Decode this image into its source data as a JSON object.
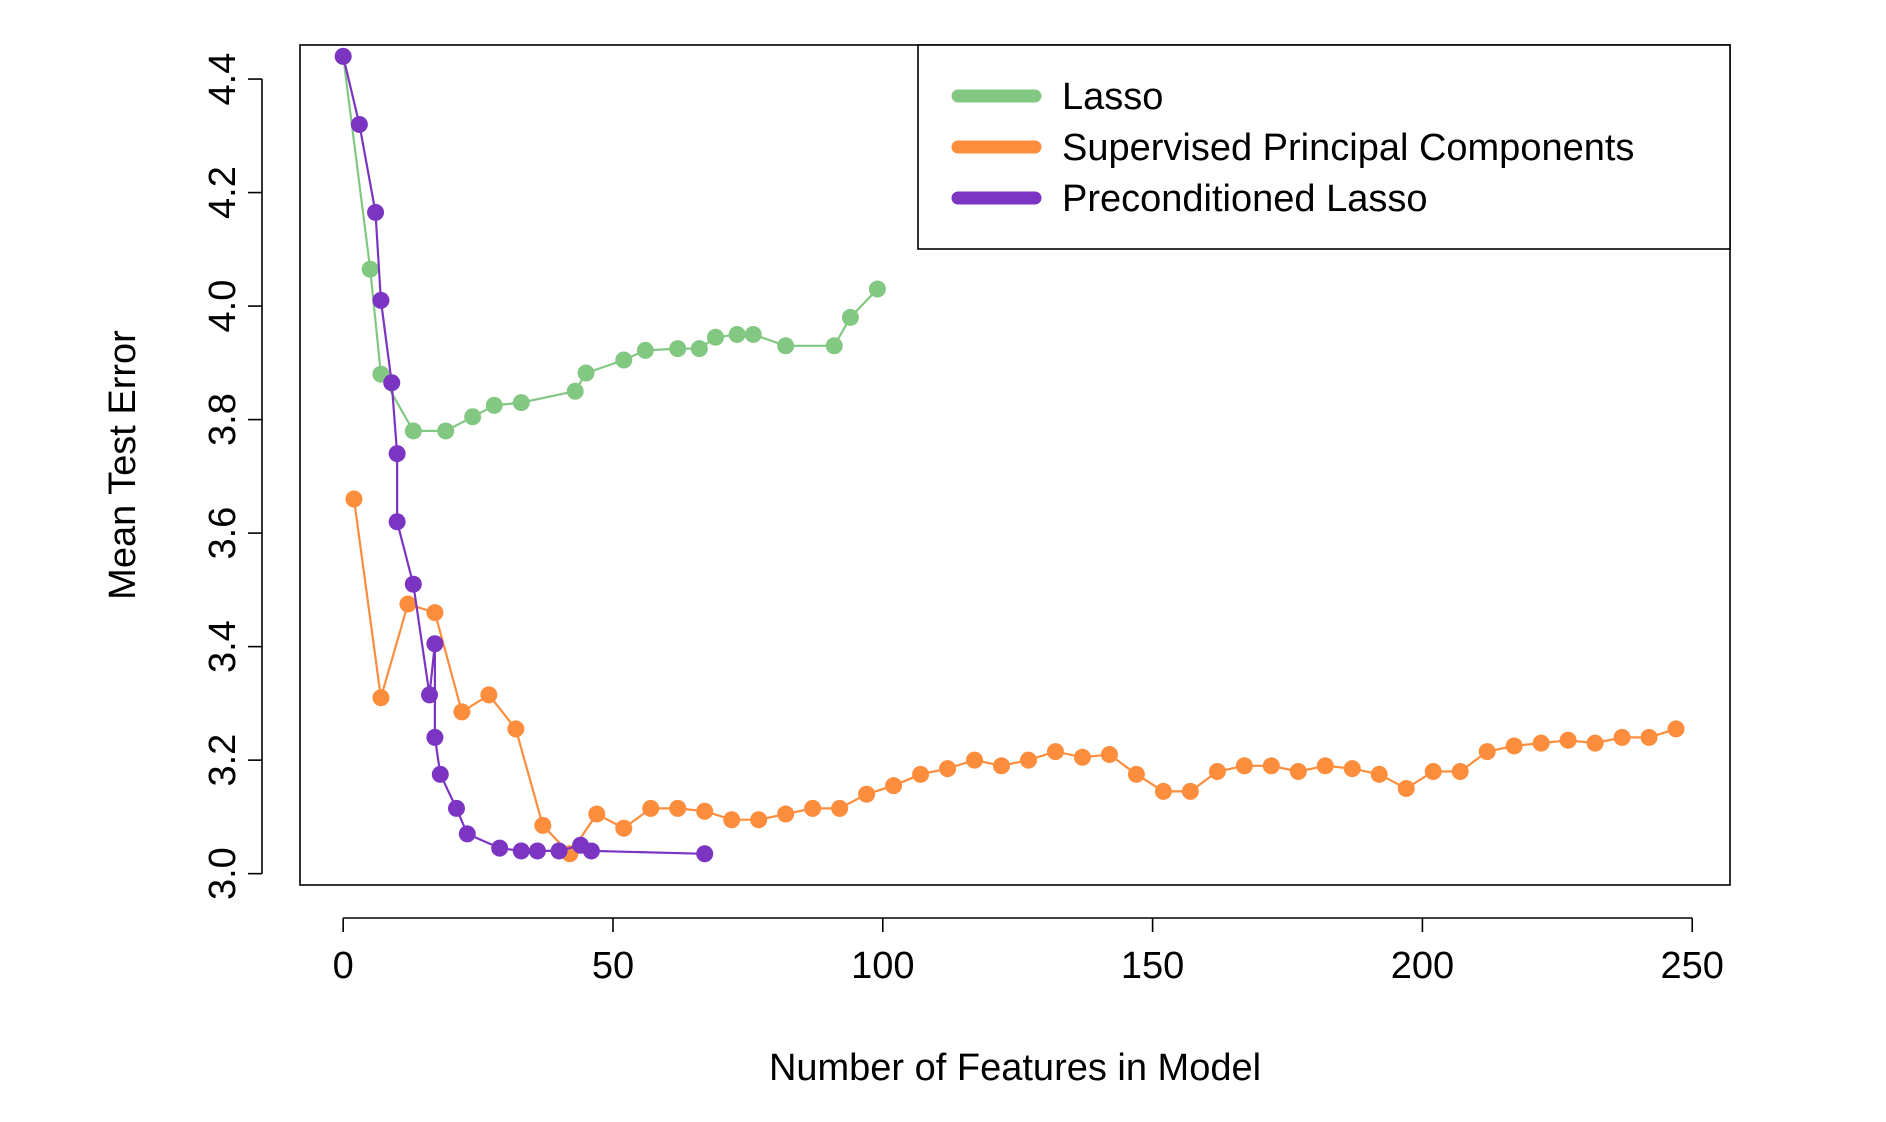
{
  "chart_data": {
    "type": "line",
    "title": "",
    "xlabel": "Number of Features in Model",
    "ylabel": "Mean Test Error",
    "xlim": [
      -8,
      257
    ],
    "ylim": [
      2.98,
      4.46
    ],
    "xticks": [
      0,
      50,
      100,
      150,
      200,
      250
    ],
    "yticks": [
      3.0,
      3.2,
      3.4,
      3.6,
      3.8,
      4.0,
      4.2,
      4.4
    ],
    "xtick_labels": [
      "0",
      "50",
      "100",
      "150",
      "200",
      "250"
    ],
    "ytick_labels": [
      "3.0",
      "3.2",
      "3.4",
      "3.6",
      "3.8",
      "4.0",
      "4.2",
      "4.4"
    ],
    "grid": false,
    "legend": {
      "position": "top-right",
      "entries": [
        "Lasso",
        "Supervised Principal Components",
        "Preconditioned Lasso"
      ]
    },
    "series": [
      {
        "name": "Lasso",
        "color": "#82c882",
        "x": [
          0,
          5,
          7,
          13,
          19,
          24,
          28,
          33,
          43,
          45,
          52,
          56,
          62,
          66,
          69,
          73,
          76,
          82,
          91,
          94,
          99
        ],
        "y": [
          4.44,
          4.065,
          3.88,
          3.78,
          3.78,
          3.805,
          3.825,
          3.83,
          3.85,
          3.882,
          3.905,
          3.922,
          3.925,
          3.925,
          3.945,
          3.95,
          3.95,
          3.93,
          3.93,
          3.98,
          4.03
        ]
      },
      {
        "name": "Supervised Principal Components",
        "color": "#fc8d3c",
        "x": [
          2,
          7,
          12,
          17,
          22,
          27,
          32,
          37,
          42,
          47,
          52,
          57,
          62,
          67,
          72,
          77,
          82,
          87,
          92,
          97,
          102,
          107,
          112,
          117,
          122,
          127,
          132,
          137,
          142,
          147,
          152,
          157,
          162,
          167,
          172,
          177,
          182,
          187,
          192,
          197,
          202,
          207,
          212,
          217,
          222,
          227,
          232,
          237,
          242,
          247
        ],
        "y": [
          3.66,
          3.31,
          3.475,
          3.46,
          3.285,
          3.315,
          3.255,
          3.085,
          3.035,
          3.105,
          3.08,
          3.115,
          3.115,
          3.11,
          3.095,
          3.095,
          3.105,
          3.115,
          3.115,
          3.14,
          3.155,
          3.175,
          3.185,
          3.2,
          3.19,
          3.2,
          3.215,
          3.205,
          3.21,
          3.175,
          3.145,
          3.145,
          3.18,
          3.19,
          3.19,
          3.18,
          3.19,
          3.185,
          3.175,
          3.15,
          3.18,
          3.18,
          3.215,
          3.225,
          3.23,
          3.235,
          3.23,
          3.24,
          3.24,
          3.255
        ]
      },
      {
        "name": "Preconditioned Lasso",
        "color": "#7b35c2",
        "x": [
          0,
          3,
          6,
          7,
          9,
          10,
          10,
          13,
          16,
          17,
          17,
          18,
          21,
          23,
          29,
          33,
          36,
          40,
          44,
          46,
          67
        ],
        "y": [
          4.44,
          4.32,
          4.165,
          4.01,
          3.865,
          3.74,
          3.62,
          3.51,
          3.315,
          3.405,
          3.24,
          3.175,
          3.115,
          3.07,
          3.045,
          3.04,
          3.04,
          3.04,
          3.05,
          3.04,
          3.035
        ]
      }
    ]
  }
}
